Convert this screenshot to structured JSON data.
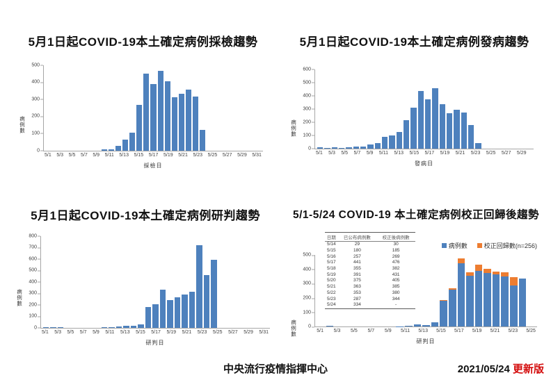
{
  "page": {
    "footer": {
      "org": "中央流行疫情指揮中心",
      "date": "2021/05/24",
      "version": "更新版"
    },
    "colors": {
      "bar_blue": "#4e81bd",
      "bar_orange": "#ed7d31",
      "version_red": "#d40d0d",
      "axis_gray": "#a6a6a6"
    }
  },
  "chart_data": [
    {
      "type": "bar",
      "title": "5月1日起COVID-19本土確定病例採檢趨勢",
      "xlabel": "採檢日",
      "ylabel": "病例數",
      "ylim": [
        0,
        500
      ],
      "ytick_step": 100,
      "grid": false,
      "categories": [
        "5/1",
        "5/2",
        "5/3",
        "5/4",
        "5/5",
        "5/6",
        "5/7",
        "5/8",
        "5/9",
        "5/10",
        "5/11",
        "5/12",
        "5/13",
        "5/14",
        "5/15",
        "5/16",
        "5/17",
        "5/18",
        "5/19",
        "5/20",
        "5/21",
        "5/22",
        "5/23",
        "5/24",
        "5/25",
        "5/26",
        "5/27",
        "5/28",
        "5/29",
        "5/30",
        "5/31"
      ],
      "values": [
        0,
        0,
        0,
        0,
        0,
        0,
        0,
        0,
        5,
        5,
        28,
        65,
        102,
        265,
        448,
        390,
        467,
        403,
        313,
        331,
        357,
        315,
        121,
        0,
        0,
        0,
        0,
        0,
        0,
        0,
        0
      ]
    },
    {
      "type": "bar",
      "title": "5月1日起COVID-19本土確定病例發病趨勢",
      "xlabel": "發病日",
      "ylabel": "病例數",
      "ylim": [
        0,
        600
      ],
      "ytick_step": 100,
      "grid": false,
      "categories": [
        "5/1",
        "5/2",
        "5/3",
        "5/4",
        "5/5",
        "5/6",
        "5/7",
        "5/8",
        "5/9",
        "5/10",
        "5/11",
        "5/12",
        "5/13",
        "5/14",
        "5/15",
        "5/16",
        "5/17",
        "5/18",
        "5/19",
        "5/20",
        "5/21",
        "5/22",
        "5/23",
        "5/24",
        "5/25",
        "5/26",
        "5/27",
        "5/28",
        "5/29",
        "5/30"
      ],
      "values": [
        8,
        3,
        8,
        3,
        10,
        15,
        15,
        30,
        38,
        85,
        100,
        125,
        215,
        310,
        435,
        372,
        455,
        335,
        268,
        293,
        272,
        175,
        38,
        0,
        0,
        0,
        0,
        0,
        0,
        0
      ]
    },
    {
      "type": "bar",
      "title": "5月1日起COVID-19本土確定病例研判趨勢",
      "xlabel": "研判日",
      "ylabel": "病例數",
      "ylim": [
        0,
        800
      ],
      "ytick_step": 100,
      "grid": false,
      "categories": [
        "5/1",
        "5/2",
        "5/3",
        "5/4",
        "5/5",
        "5/6",
        "5/7",
        "5/8",
        "5/9",
        "5/10",
        "5/11",
        "5/12",
        "5/13",
        "5/14",
        "5/15",
        "5/16",
        "5/17",
        "5/18",
        "5/19",
        "5/20",
        "5/21",
        "5/22",
        "5/23",
        "5/24",
        "5/25",
        "5/26",
        "5/27",
        "5/28",
        "5/29",
        "5/30",
        "5/31"
      ],
      "values": [
        3,
        1,
        1,
        0,
        0,
        0,
        0,
        0,
        1,
        2,
        7,
        16,
        13,
        29,
        180,
        206,
        330,
        237,
        263,
        286,
        312,
        721,
        455,
        590,
        0,
        0,
        0,
        0,
        0,
        0,
        0
      ]
    },
    {
      "type": "stacked-bar",
      "title": "5/1-5/24 COVID-19 本土確定病例校正回歸後趨勢",
      "xlabel": "研判日",
      "ylabel": "病例數",
      "ylim": [
        0,
        500
      ],
      "ytick_step": 100,
      "grid": false,
      "legend_position": "top-right",
      "categories": [
        "5/1",
        "5/2",
        "5/3",
        "5/4",
        "5/5",
        "5/6",
        "5/7",
        "5/8",
        "5/9",
        "5/10",
        "5/11",
        "5/12",
        "5/13",
        "5/14",
        "5/15",
        "5/16",
        "5/17",
        "5/18",
        "5/19",
        "5/20",
        "5/21",
        "5/22",
        "5/23",
        "5/24",
        "5/25"
      ],
      "series": [
        {
          "name": "病例數",
          "color": "#4e81bd",
          "values": [
            0,
            5,
            0,
            0,
            0,
            0,
            0,
            0,
            0,
            2,
            8,
            16,
            13,
            29,
            180,
            257,
            441,
            355,
            391,
            375,
            363,
            353,
            287,
            334,
            0
          ]
        },
        {
          "name": "校正回歸數(n=256)",
          "color": "#ed7d31",
          "values": [
            0,
            0,
            0,
            0,
            0,
            0,
            0,
            0,
            0,
            0,
            0,
            0,
            0,
            1,
            5,
            12,
            35,
            27,
            40,
            30,
            22,
            27,
            57,
            0,
            0
          ]
        }
      ],
      "table": {
        "headers": [
          "日期",
          "已公布病例數",
          "校正後病例數"
        ],
        "rows": [
          [
            "5/14",
            "29",
            "30"
          ],
          [
            "5/15",
            "180",
            "185"
          ],
          [
            "5/16",
            "257",
            "269"
          ],
          [
            "5/17",
            "441",
            "476"
          ],
          [
            "5/18",
            "355",
            "382"
          ],
          [
            "5/19",
            "391",
            "431"
          ],
          [
            "5/20",
            "375",
            "405"
          ],
          [
            "5/21",
            "363",
            "385"
          ],
          [
            "5/22",
            "353",
            "380"
          ],
          [
            "5/23",
            "287",
            "344"
          ],
          [
            "5/24",
            "334",
            "-"
          ]
        ]
      }
    }
  ]
}
